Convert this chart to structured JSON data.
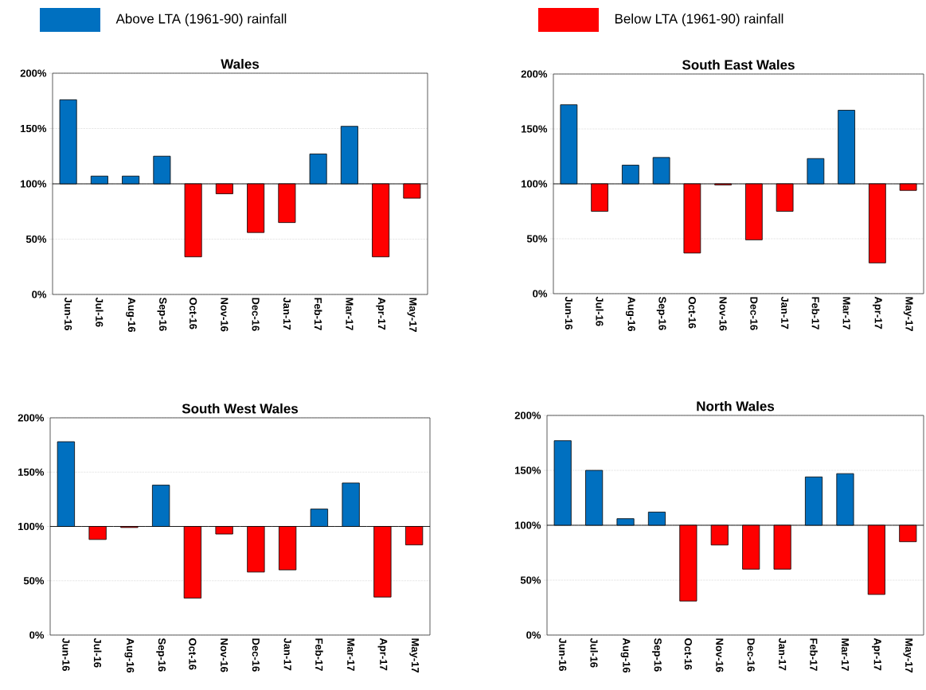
{
  "chart_data": [
    {
      "type": "bar",
      "title": "Wales",
      "legend": "top",
      "grid": "y",
      "ylim": [
        0,
        200
      ],
      "yticks": [
        {
          "value": 0,
          "label": "0%"
        },
        {
          "value": 50,
          "label": "50%"
        },
        {
          "value": 100,
          "label": "100%"
        },
        {
          "value": 150,
          "label": "150%"
        },
        {
          "value": 200,
          "label": "200%"
        }
      ],
      "categories": [
        "Jun-16",
        "Jul-16",
        "Aug-16",
        "Sep-16",
        "Oct-16",
        "Nov-16",
        "Dec-16",
        "Jan-17",
        "Feb-17",
        "Mar-17",
        "Apr-17",
        "May-17"
      ],
      "series": [
        {
          "name": "Above LTA (1961-90) rainfall",
          "color": "#0070c0",
          "base": [
            100,
            100,
            100,
            100,
            null,
            null,
            null,
            null,
            100,
            100,
            null,
            null
          ],
          "values": [
            76,
            7,
            7,
            25,
            null,
            null,
            null,
            null,
            27,
            52,
            null,
            null
          ]
        },
        {
          "name": "Below LTA (1961-90)  rainfall",
          "color": "#ff0000",
          "base": [
            null,
            null,
            null,
            null,
            100,
            100,
            100,
            100,
            null,
            null,
            100,
            100
          ],
          "values": [
            null,
            null,
            null,
            null,
            -66,
            -9,
            -44,
            -35,
            null,
            null,
            -66,
            -13
          ]
        }
      ]
    },
    {
      "type": "bar",
      "title": "South East Wales",
      "grid": "y",
      "ylim": [
        0,
        200
      ],
      "yticks": [
        {
          "value": 0,
          "label": "0%"
        },
        {
          "value": 50,
          "label": "50%"
        },
        {
          "value": 100,
          "label": "100%"
        },
        {
          "value": 150,
          "label": "150%"
        },
        {
          "value": 200,
          "label": "200%"
        }
      ],
      "categories": [
        "Jun-16",
        "Jul-16",
        "Aug-16",
        "Sep-16",
        "Oct-16",
        "Nov-16",
        "Dec-16",
        "Jan-17",
        "Feb-17",
        "Mar-17",
        "Apr-17",
        "May-17"
      ],
      "series": [
        {
          "color": "#0070c0",
          "base": [
            100,
            null,
            100,
            100,
            null,
            null,
            null,
            null,
            100,
            100,
            null,
            null
          ],
          "values": [
            72,
            null,
            17,
            24,
            null,
            null,
            null,
            null,
            23,
            67,
            null,
            null
          ]
        },
        {
          "color": "#ff0000",
          "base": [
            null,
            100,
            null,
            null,
            100,
            100,
            100,
            100,
            null,
            null,
            100,
            100
          ],
          "values": [
            null,
            -25,
            null,
            null,
            -63,
            -1,
            -51,
            -25,
            null,
            null,
            -72,
            -6
          ]
        }
      ]
    },
    {
      "type": "bar",
      "title": "South West Wales",
      "grid": "y",
      "ylim": [
        0,
        200
      ],
      "yticks": [
        {
          "value": 0,
          "label": "0%"
        },
        {
          "value": 50,
          "label": "50%"
        },
        {
          "value": 100,
          "label": "100%"
        },
        {
          "value": 150,
          "label": "150%"
        },
        {
          "value": 200,
          "label": "200%"
        }
      ],
      "categories": [
        "Jun-16",
        "Jul-16",
        "Aug-16",
        "Sep-16",
        "Oct-16",
        "Nov-16",
        "Dec-16",
        "Jan-17",
        "Feb-17",
        "Mar-17",
        "Apr-17",
        "May-17"
      ],
      "series": [
        {
          "color": "#0070c0",
          "base": [
            100,
            null,
            null,
            100,
            null,
            null,
            null,
            null,
            100,
            100,
            null,
            null
          ],
          "values": [
            78,
            null,
            null,
            38,
            null,
            null,
            null,
            null,
            16,
            40,
            null,
            null
          ]
        },
        {
          "color": "#ff0000",
          "base": [
            null,
            100,
            100,
            null,
            100,
            100,
            100,
            100,
            null,
            null,
            100,
            100
          ],
          "values": [
            null,
            -12,
            -1,
            null,
            -66,
            -7,
            -42,
            -40,
            null,
            null,
            -65,
            -17
          ]
        }
      ]
    },
    {
      "type": "bar",
      "title": "North Wales",
      "grid": "y",
      "ylim": [
        0,
        200
      ],
      "yticks": [
        {
          "value": 0,
          "label": "0%"
        },
        {
          "value": 50,
          "label": "50%"
        },
        {
          "value": 100,
          "label": "100%"
        },
        {
          "value": 150,
          "label": "150%"
        },
        {
          "value": 200,
          "label": "200%"
        }
      ],
      "categories": [
        "Jun-16",
        "Jul-16",
        "Aug-16",
        "Sep-16",
        "Oct-16",
        "Nov-16",
        "Dec-16",
        "Jan-17",
        "Feb-17",
        "Mar-17",
        "Apr-17",
        "May-17"
      ],
      "series": [
        {
          "color": "#0070c0",
          "base": [
            100,
            100,
            100,
            100,
            null,
            null,
            null,
            null,
            100,
            100,
            null,
            null
          ],
          "values": [
            77,
            50,
            6,
            12,
            null,
            null,
            null,
            null,
            44,
            47,
            null,
            null
          ]
        },
        {
          "color": "#ff0000",
          "base": [
            null,
            null,
            null,
            null,
            100,
            100,
            100,
            100,
            null,
            null,
            100,
            100
          ],
          "values": [
            null,
            null,
            null,
            null,
            -69,
            -18,
            -40,
            -40,
            null,
            null,
            -63,
            -15
          ]
        }
      ]
    }
  ]
}
